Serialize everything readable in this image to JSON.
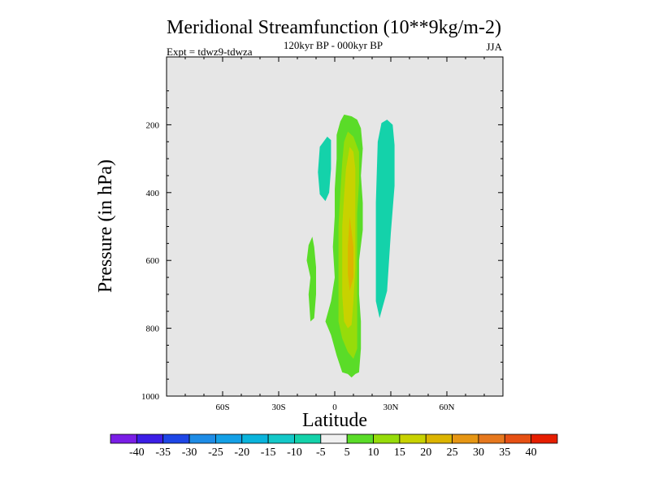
{
  "header": {
    "title": "Meridional Streamfunction (10**9kg/m-2)",
    "subtitle": "120kyr BP - 000kyr BP",
    "left_label": "Expt = tdwz9-tdwza",
    "right_label": "JJA"
  },
  "chart_data": {
    "type": "contour",
    "xlabel": "Latitude",
    "ylabel": "Pressure (in hPa)",
    "xlim": [
      -90,
      90
    ],
    "ylim": [
      1000,
      0
    ],
    "background_color": "#e6e6e6",
    "x_ticks": [
      {
        "value": -60,
        "label": "60S"
      },
      {
        "value": -30,
        "label": "30S"
      },
      {
        "value": 0,
        "label": "0"
      },
      {
        "value": 30,
        "label": "30N"
      },
      {
        "value": 60,
        "label": "60N"
      }
    ],
    "y_ticks": [
      {
        "value": 200,
        "label": "200"
      },
      {
        "value": 400,
        "label": "400"
      },
      {
        "value": 600,
        "label": "600"
      },
      {
        "value": 800,
        "label": "800"
      },
      {
        "value": 1000,
        "label": "1000"
      }
    ],
    "colorbar": {
      "labels": [
        "-40",
        "-35",
        "-30",
        "-25",
        "-20",
        "-15",
        "-10",
        "-5",
        "5",
        "10",
        "15",
        "20",
        "25",
        "30",
        "35",
        "40"
      ],
      "colors": [
        "#7a1ee6",
        "#3c1ee6",
        "#1e46e6",
        "#1e8ce6",
        "#14a0e6",
        "#0ab4dc",
        "#14c8c8",
        "#14d2aa",
        "#f0f0f0",
        "#5adc28",
        "#96dc0a",
        "#c8d200",
        "#dcb400",
        "#e69614",
        "#e6781e",
        "#e65014",
        "#e61e00"
      ]
    },
    "regions": [
      {
        "level": "-10 to -5",
        "color": "#14d2aa",
        "points": [
          [
            -4,
            235
          ],
          [
            -2,
            245
          ],
          [
            -2,
            330
          ],
          [
            -3,
            400
          ],
          [
            -5,
            425
          ],
          [
            -8,
            405
          ],
          [
            -9,
            340
          ],
          [
            -8,
            265
          ]
        ]
      },
      {
        "level": "-10 to -5",
        "color": "#14d2aa",
        "points": [
          [
            23,
            250
          ],
          [
            25,
            195
          ],
          [
            28,
            185
          ],
          [
            31,
            200
          ],
          [
            32,
            260
          ],
          [
            32,
            380
          ],
          [
            30,
            520
          ],
          [
            28,
            690
          ],
          [
            24,
            770
          ],
          [
            22,
            720
          ],
          [
            22,
            600
          ],
          [
            22,
            430
          ]
        ]
      },
      {
        "level": "5 to 10",
        "color": "#5adc28",
        "points": [
          [
            -12,
            530
          ],
          [
            -14,
            555
          ],
          [
            -15,
            600
          ],
          [
            -13,
            650
          ],
          [
            -14,
            700
          ],
          [
            -13,
            780
          ],
          [
            -11,
            770
          ],
          [
            -10,
            700
          ],
          [
            -10,
            620
          ],
          [
            -11,
            560
          ]
        ]
      },
      {
        "level": "5 to 10",
        "color": "#5adc28",
        "points": [
          [
            5,
            170
          ],
          [
            9,
            175
          ],
          [
            12,
            185
          ],
          [
            14,
            210
          ],
          [
            15,
            270
          ],
          [
            14,
            350
          ],
          [
            15,
            430
          ],
          [
            15,
            510
          ],
          [
            13,
            600
          ],
          [
            13,
            700
          ],
          [
            14,
            780
          ],
          [
            14,
            860
          ],
          [
            13,
            930
          ],
          [
            11,
            935
          ],
          [
            9,
            945
          ],
          [
            7,
            935
          ],
          [
            4,
            930
          ],
          [
            1,
            880
          ],
          [
            -2,
            820
          ],
          [
            -5,
            780
          ],
          [
            -2,
            720
          ],
          [
            0,
            650
          ],
          [
            -1,
            560
          ],
          [
            0,
            470
          ],
          [
            0,
            390
          ],
          [
            1,
            300
          ],
          [
            1,
            230
          ],
          [
            3,
            190
          ]
        ]
      },
      {
        "level": "10 to 15",
        "color": "#96dc0a",
        "points": [
          [
            7,
            220
          ],
          [
            10,
            235
          ],
          [
            13,
            280
          ],
          [
            13,
            370
          ],
          [
            12,
            460
          ],
          [
            12,
            560
          ],
          [
            12,
            660
          ],
          [
            12,
            760
          ],
          [
            12,
            860
          ],
          [
            10,
            890
          ],
          [
            7,
            870
          ],
          [
            4,
            830
          ],
          [
            2,
            780
          ],
          [
            2,
            700
          ],
          [
            2,
            600
          ],
          [
            2,
            500
          ],
          [
            3,
            400
          ],
          [
            4,
            310
          ],
          [
            5,
            250
          ]
        ]
      },
      {
        "level": "15 to 20",
        "color": "#c8d200",
        "points": [
          [
            8,
            265
          ],
          [
            10,
            280
          ],
          [
            11,
            330
          ],
          [
            11,
            420
          ],
          [
            11,
            520
          ],
          [
            11,
            620
          ],
          [
            10,
            720
          ],
          [
            9,
            790
          ],
          [
            7,
            800
          ],
          [
            5,
            780
          ],
          [
            4,
            700
          ],
          [
            4,
            600
          ],
          [
            4,
            500
          ],
          [
            5,
            410
          ],
          [
            6,
            330
          ]
        ]
      },
      {
        "level": "20 to 25",
        "color": "#dcb400",
        "points": [
          [
            8,
            470
          ],
          [
            10,
            560
          ],
          [
            10,
            650
          ],
          [
            8,
            690
          ],
          [
            7,
            640
          ],
          [
            7,
            560
          ]
        ]
      }
    ]
  }
}
